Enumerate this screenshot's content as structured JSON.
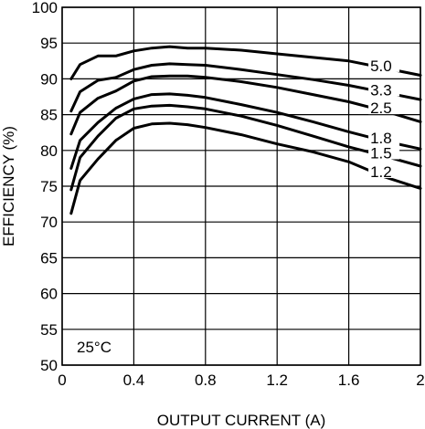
{
  "chart_data": {
    "type": "line",
    "title": "",
    "xlabel": "OUTPUT CURRENT (A)",
    "ylabel": "EFFICIENCY (%)",
    "xlim": [
      0,
      2
    ],
    "ylim": [
      50,
      100
    ],
    "xticks": [
      0,
      0.4,
      0.8,
      1.2,
      1.6,
      2
    ],
    "xtick_labels": [
      "0",
      "0.4",
      "0.8",
      "1.2",
      "1.6",
      "2"
    ],
    "yticks": [
      50,
      55,
      60,
      65,
      70,
      75,
      80,
      85,
      90,
      95,
      100
    ],
    "ytick_labels": [
      "50",
      "55",
      "60",
      "65",
      "70",
      "75",
      "80",
      "85",
      "90",
      "95",
      "100"
    ],
    "grid": true,
    "annotation": "25°C",
    "series": [
      {
        "name": "5.0",
        "x": [
          0.05,
          0.1,
          0.2,
          0.3,
          0.4,
          0.5,
          0.6,
          0.7,
          0.8,
          1.0,
          1.2,
          1.4,
          1.6,
          1.8,
          2.0
        ],
        "y": [
          90.0,
          92.0,
          93.2,
          93.2,
          93.9,
          94.3,
          94.5,
          94.3,
          94.3,
          94.0,
          93.5,
          93.0,
          92.5,
          91.5,
          90.5
        ]
      },
      {
        "name": "3.3",
        "x": [
          0.05,
          0.1,
          0.2,
          0.3,
          0.4,
          0.5,
          0.6,
          0.7,
          0.8,
          1.0,
          1.2,
          1.4,
          1.6,
          1.8,
          2.0
        ],
        "y": [
          85.5,
          88.2,
          89.8,
          90.2,
          91.3,
          91.9,
          92.1,
          92.0,
          91.9,
          91.3,
          90.6,
          89.9,
          89.1,
          88.1,
          87.1
        ]
      },
      {
        "name": "2.5",
        "x": [
          0.05,
          0.1,
          0.2,
          0.3,
          0.4,
          0.5,
          0.6,
          0.7,
          0.8,
          1.0,
          1.2,
          1.4,
          1.6,
          1.8,
          2.0
        ],
        "y": [
          82.3,
          85.3,
          87.3,
          88.3,
          89.7,
          90.3,
          90.4,
          90.4,
          90.2,
          89.6,
          88.8,
          87.8,
          86.8,
          85.5,
          84.0
        ]
      },
      {
        "name": "1.8",
        "x": [
          0.05,
          0.1,
          0.2,
          0.3,
          0.4,
          0.5,
          0.6,
          0.7,
          0.8,
          1.0,
          1.2,
          1.4,
          1.6,
          1.8,
          2.0
        ],
        "y": [
          77.5,
          81.4,
          83.9,
          85.9,
          87.2,
          87.8,
          87.9,
          87.7,
          87.4,
          86.4,
          85.3,
          84.0,
          82.6,
          81.3,
          80.2
        ]
      },
      {
        "name": "1.5",
        "x": [
          0.05,
          0.1,
          0.2,
          0.3,
          0.4,
          0.5,
          0.6,
          0.7,
          0.8,
          1.0,
          1.2,
          1.4,
          1.6,
          1.8,
          2.0
        ],
        "y": [
          74.5,
          79.0,
          82.0,
          84.5,
          85.8,
          86.2,
          86.3,
          86.1,
          85.8,
          84.8,
          83.5,
          82.0,
          80.5,
          79.2,
          77.8
        ]
      },
      {
        "name": "1.2",
        "x": [
          0.05,
          0.1,
          0.2,
          0.3,
          0.4,
          0.5,
          0.6,
          0.7,
          0.8,
          1.0,
          1.2,
          1.4,
          1.6,
          1.8,
          2.0
        ],
        "y": [
          71.2,
          75.8,
          78.8,
          81.4,
          83.1,
          83.7,
          83.8,
          83.6,
          83.2,
          82.2,
          80.9,
          79.8,
          78.4,
          76.3,
          74.7
        ]
      }
    ]
  }
}
